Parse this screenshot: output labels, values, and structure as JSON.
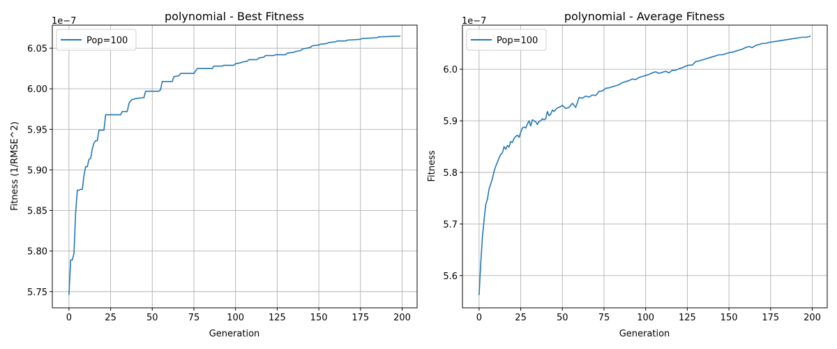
{
  "chart_data": [
    {
      "type": "line",
      "title": "polynomial - Best Fitness",
      "xlabel": "Generation",
      "ylabel": "Fitness (1/RMSE^2)",
      "y_scale_label": "1e−7",
      "xlim": [
        -10,
        209
      ],
      "ylim": [
        5.73,
        6.0785
      ],
      "xticks": [
        0,
        25,
        50,
        75,
        100,
        125,
        150,
        175,
        200
      ],
      "yticks": [
        5.75,
        5.8,
        5.85,
        5.9,
        5.95,
        6.0,
        6.05
      ],
      "ytick_labels": [
        "5.75",
        "5.80",
        "5.85",
        "5.90",
        "5.95",
        "6.00",
        "6.05"
      ],
      "grid": true,
      "legend_position": "top-left",
      "color": "#1f77b4",
      "series": [
        {
          "name": "Pop=100",
          "x": [
            0,
            1,
            2,
            3,
            4,
            5,
            6,
            7,
            8,
            9,
            10,
            11,
            12,
            13,
            14,
            15,
            16,
            17,
            18,
            21,
            22,
            31,
            32,
            35,
            36,
            37,
            38,
            39,
            40,
            44,
            45,
            46,
            54,
            55,
            56,
            57,
            62,
            63,
            66,
            67,
            75,
            76,
            77,
            86,
            87,
            92,
            93,
            99,
            100,
            103,
            104,
            107,
            108,
            113,
            114,
            117,
            118,
            123,
            124,
            130,
            131,
            135,
            136,
            139,
            140,
            145,
            146,
            150,
            151,
            155,
            156,
            160,
            161,
            166,
            167,
            175,
            176,
            185,
            186,
            199
          ],
          "y": [
            5.746,
            5.789,
            5.789,
            5.797,
            5.847,
            5.875,
            5.875,
            5.876,
            5.876,
            5.893,
            5.904,
            5.904,
            5.913,
            5.914,
            5.926,
            5.933,
            5.936,
            5.936,
            5.949,
            5.949,
            5.968,
            5.968,
            5.972,
            5.972,
            5.982,
            5.985,
            5.987,
            5.987,
            5.988,
            5.989,
            5.989,
            5.997,
            5.997,
            5.999,
            6.009,
            6.009,
            6.009,
            6.015,
            6.016,
            6.019,
            6.019,
            6.022,
            6.025,
            6.025,
            6.028,
            6.028,
            6.029,
            6.029,
            6.031,
            6.032,
            6.033,
            6.034,
            6.036,
            6.036,
            6.038,
            6.039,
            6.041,
            6.041,
            6.042,
            6.042,
            6.044,
            6.045,
            6.046,
            6.047,
            6.049,
            6.051,
            6.053,
            6.054,
            6.055,
            6.056,
            6.057,
            6.058,
            6.059,
            6.059,
            6.06,
            6.061,
            6.062,
            6.063,
            6.064,
            6.065
          ]
        }
      ]
    },
    {
      "type": "line",
      "title": "polynomial - Average Fitness",
      "xlabel": "Generation",
      "ylabel": "Fitness",
      "y_scale_label": "1e−7",
      "xlim": [
        -10,
        209
      ],
      "ylim": [
        5.5375,
        6.0855
      ],
      "xticks": [
        0,
        25,
        50,
        75,
        100,
        125,
        150,
        175,
        200
      ],
      "yticks": [
        5.6,
        5.7,
        5.8,
        5.9,
        6.0
      ],
      "ytick_labels": [
        "5.6",
        "5.7",
        "5.8",
        "5.9",
        "6.0"
      ],
      "grid": true,
      "legend_position": "top-left",
      "color": "#1f77b4",
      "series": [
        {
          "name": "Pop=100",
          "x": [
            0,
            1,
            2,
            3,
            4,
            5,
            6,
            7,
            8,
            9,
            10,
            11,
            12,
            13,
            14,
            15,
            16,
            17,
            18,
            19,
            20,
            21,
            22,
            23,
            24,
            25,
            26,
            27,
            28,
            29,
            30,
            31,
            32,
            33,
            34,
            35,
            36,
            37,
            38,
            39,
            40,
            41,
            42,
            43,
            44,
            45,
            46,
            47,
            48,
            49,
            50,
            52,
            54,
            56,
            58,
            60,
            62,
            64,
            66,
            68,
            70,
            72,
            74,
            76,
            78,
            80,
            82,
            84,
            86,
            88,
            90,
            92,
            94,
            96,
            98,
            100,
            102,
            104,
            106,
            108,
            110,
            112,
            114,
            116,
            118,
            120,
            122,
            124,
            126,
            128,
            130,
            132,
            134,
            136,
            138,
            140,
            142,
            144,
            146,
            148,
            150,
            152,
            154,
            156,
            158,
            160,
            162,
            164,
            166,
            168,
            170,
            172,
            174,
            176,
            178,
            180,
            182,
            184,
            186,
            188,
            190,
            192,
            194,
            196,
            198,
            199
          ],
          "y": [
            5.562,
            5.625,
            5.675,
            5.708,
            5.738,
            5.748,
            5.768,
            5.778,
            5.788,
            5.802,
            5.812,
            5.82,
            5.828,
            5.835,
            5.838,
            5.85,
            5.845,
            5.852,
            5.849,
            5.86,
            5.858,
            5.866,
            5.87,
            5.872,
            5.868,
            5.878,
            5.886,
            5.888,
            5.886,
            5.894,
            5.9,
            5.89,
            5.902,
            5.9,
            5.898,
            5.893,
            5.899,
            5.9,
            5.904,
            5.902,
            5.904,
            5.918,
            5.91,
            5.913,
            5.921,
            5.918,
            5.922,
            5.925,
            5.926,
            5.928,
            5.93,
            5.924,
            5.926,
            5.934,
            5.926,
            5.945,
            5.944,
            5.948,
            5.946,
            5.95,
            5.949,
            5.957,
            5.958,
            5.963,
            5.964,
            5.966,
            5.968,
            5.97,
            5.974,
            5.976,
            5.978,
            5.981,
            5.98,
            5.984,
            5.986,
            5.988,
            5.99,
            5.993,
            5.995,
            5.992,
            5.994,
            5.996,
            5.993,
            5.998,
            5.998,
            6.001,
            6.003,
            6.006,
            6.008,
            6.008,
            6.015,
            6.016,
            6.018,
            6.02,
            6.022,
            6.024,
            6.026,
            6.028,
            6.028,
            6.03,
            6.032,
            6.033,
            6.035,
            6.037,
            6.039,
            6.042,
            6.044,
            6.042,
            6.046,
            6.048,
            6.05,
            6.05,
            6.052,
            6.053,
            6.054,
            6.055,
            6.056,
            6.057,
            6.058,
            6.059,
            6.06,
            6.061,
            6.062,
            6.062,
            6.063,
            6.065
          ]
        }
      ]
    }
  ]
}
